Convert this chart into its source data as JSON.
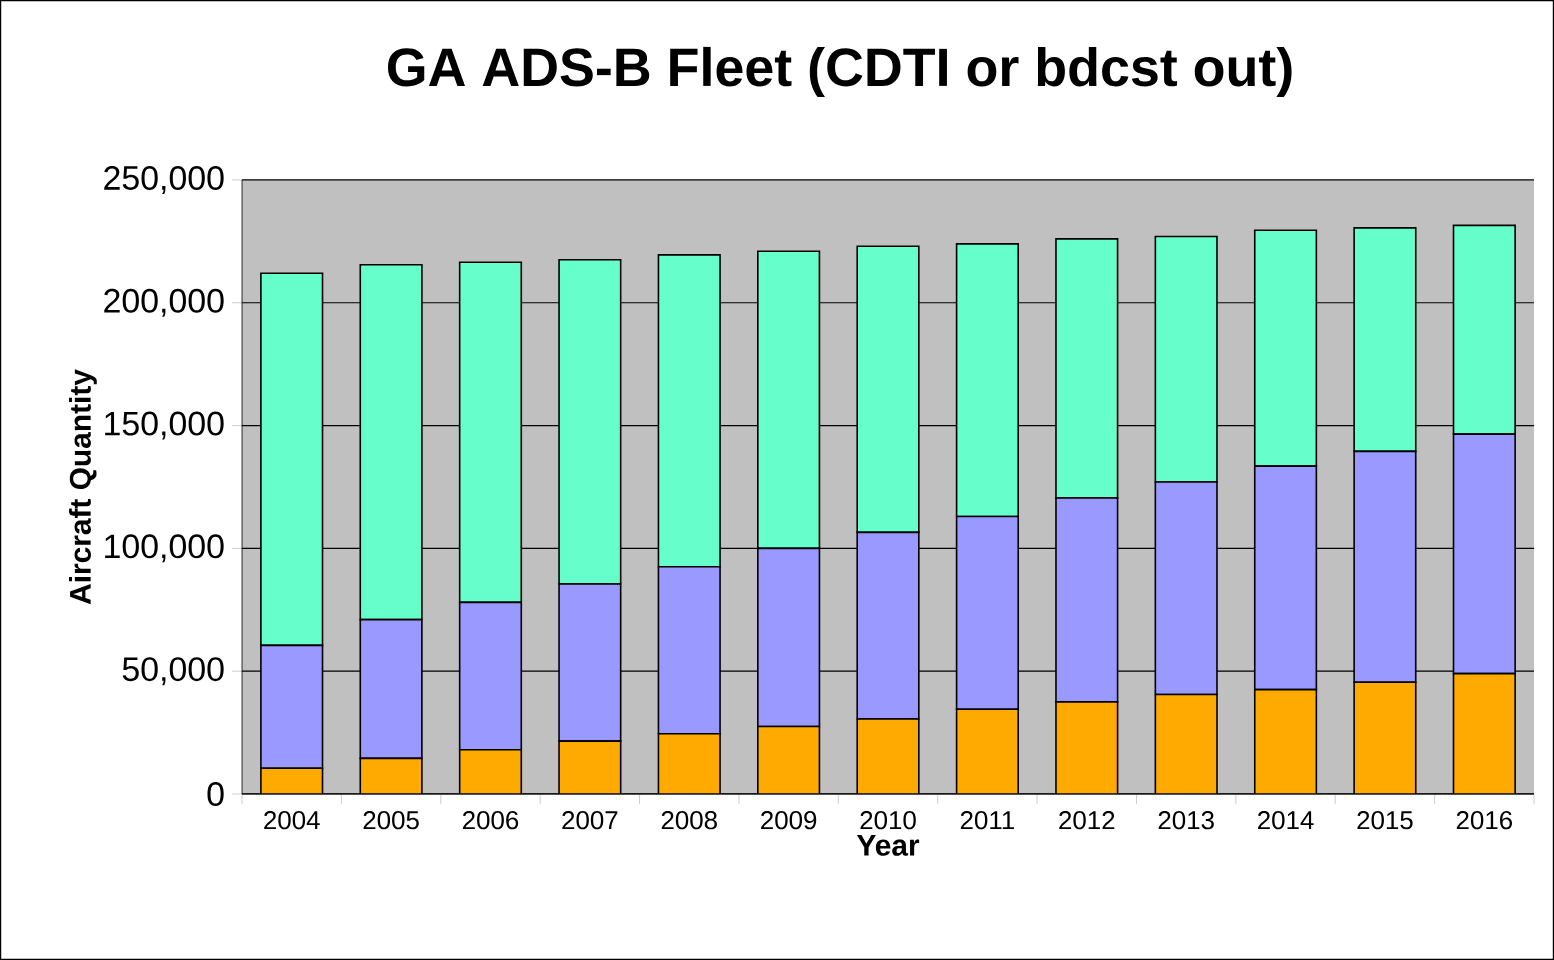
{
  "chart_data": {
    "type": "bar",
    "stacked": true,
    "title": "GA ADS-B Fleet (CDTI or bdcst out)",
    "xlabel": "Year",
    "ylabel": "Aircraft Quantity",
    "categories": [
      "2004",
      "2005",
      "2006",
      "2007",
      "2008",
      "2009",
      "2010",
      "2011",
      "2012",
      "2013",
      "2014",
      "2015",
      "2016"
    ],
    "series": [
      {
        "color": "#ffaa00",
        "values": [
          10500,
          14500,
          18000,
          21500,
          24500,
          27500,
          30500,
          34500,
          37500,
          40500,
          42500,
          45500,
          49000
        ]
      },
      {
        "color": "#9999ff",
        "values": [
          50000,
          56500,
          60000,
          64000,
          68000,
          72500,
          76000,
          78500,
          83000,
          86500,
          91000,
          94000,
          97500
        ]
      },
      {
        "color": "#66ffcc",
        "values": [
          151500,
          144500,
          138500,
          132000,
          127000,
          121000,
          116500,
          111000,
          105500,
          100000,
          96000,
          91000,
          85000
        ]
      }
    ],
    "ylim": [
      0,
      250000
    ],
    "yticks": [
      {
        "value": 0,
        "label": "0"
      },
      {
        "value": 50000,
        "label": "50,000"
      },
      {
        "value": 100000,
        "label": "100,000"
      },
      {
        "value": 150000,
        "label": "150,000"
      },
      {
        "value": 200000,
        "label": "200,000"
      },
      {
        "value": 250000,
        "label": "250,000"
      }
    ],
    "grid": "y"
  }
}
